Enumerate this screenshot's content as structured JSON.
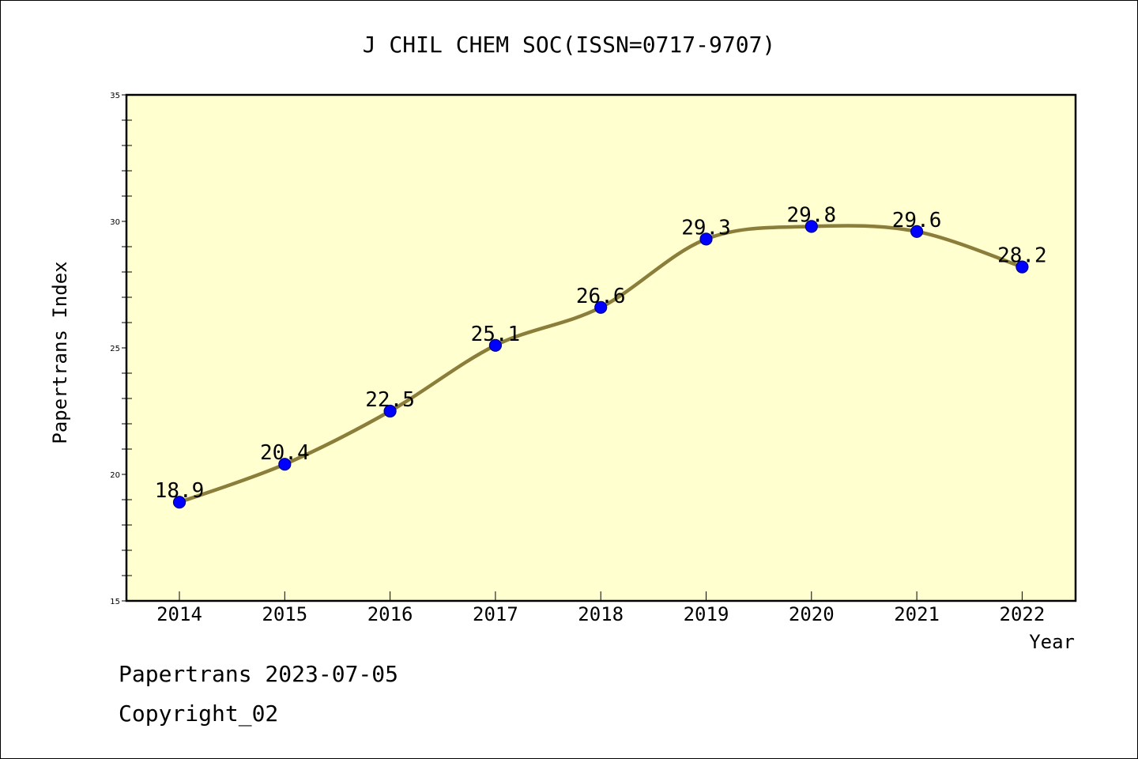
{
  "colors": {
    "plot_background": "#ffffd0",
    "line": "#8b7d3a",
    "marker": "#0000ff",
    "marker_edge": "#00008b",
    "axis": "#000000"
  },
  "footer": {
    "line1": "Papertrans 2023-07-05",
    "line2": "Copyright_02"
  },
  "chart_data": {
    "type": "line",
    "title": "J CHIL CHEM SOC(ISSN=0717-9707)",
    "xlabel": "Year",
    "ylabel": "Papertrans Index",
    "categories": [
      "2014",
      "2015",
      "2016",
      "2017",
      "2018",
      "2019",
      "2020",
      "2021",
      "2022"
    ],
    "values": [
      18.9,
      20.4,
      22.5,
      25.1,
      26.6,
      29.3,
      29.8,
      29.6,
      28.2
    ],
    "data_labels": [
      "18.9",
      "20.4",
      "22.5",
      "25.1",
      "26.6",
      "29.3",
      "29.8",
      "29.6",
      "28.2"
    ],
    "ylim": [
      15,
      35
    ],
    "y_major_ticks": [
      "15",
      "20",
      "25",
      "30",
      "35"
    ],
    "y_minor_step": 1,
    "grid": false,
    "legend": "none"
  }
}
